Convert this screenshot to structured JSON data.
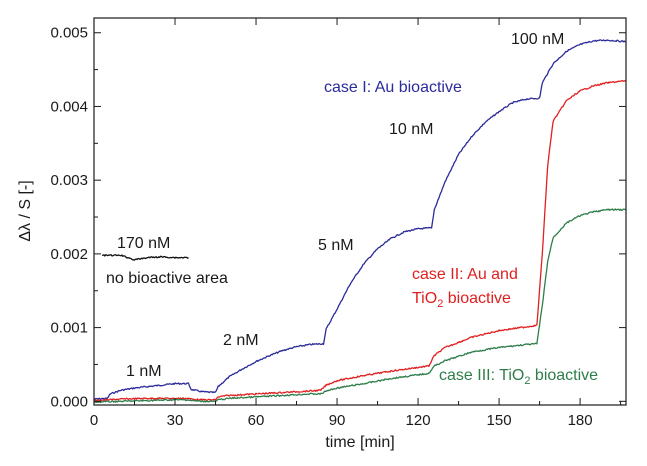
{
  "chart_data": {
    "type": "line",
    "xlabel": "time [min]",
    "ylabel": "Δλ / S [-]",
    "xlim": [
      0,
      197
    ],
    "ylim": [
      -5e-05,
      0.0052
    ],
    "xticks": [
      "0",
      "30",
      "60",
      "90",
      "120",
      "150",
      "180"
    ],
    "yticks": [
      "0.000",
      "0.001",
      "0.002",
      "0.003",
      "0.004",
      "0.005"
    ],
    "grid": false,
    "colors": {
      "case_I": "#2b2b9a",
      "case_II": "#e02020",
      "case_III": "#2e7d4a",
      "no_bioactive": "#111111"
    },
    "series": [
      {
        "key": "case_I",
        "x": [
          0,
          5,
          6,
          10,
          15,
          20,
          25,
          30,
          35,
          36,
          40,
          44,
          45,
          46,
          50,
          55,
          60,
          65,
          70,
          75,
          80,
          84,
          85,
          86,
          90,
          95,
          100,
          105,
          110,
          115,
          120,
          124,
          125,
          126,
          130,
          135,
          140,
          145,
          150,
          155,
          160,
          164,
          165,
          166,
          170,
          175,
          180,
          185,
          190,
          197
        ],
        "y": [
          3e-05,
          4e-05,
          0.0001,
          0.00015,
          0.00018,
          0.0002,
          0.00022,
          0.00024,
          0.00024,
          0.00016,
          0.00013,
          0.00012,
          0.00012,
          0.0002,
          0.00033,
          0.00044,
          0.00054,
          0.00062,
          0.00069,
          0.00074,
          0.00077,
          0.00078,
          0.00078,
          0.00098,
          0.00125,
          0.0016,
          0.00187,
          0.00207,
          0.00221,
          0.0023,
          0.00234,
          0.00235,
          0.00235,
          0.0026,
          0.00298,
          0.00335,
          0.0036,
          0.00379,
          0.00393,
          0.00405,
          0.0041,
          0.00411,
          0.00411,
          0.00432,
          0.00458,
          0.00475,
          0.00484,
          0.00489,
          0.0049,
          0.00488
        ]
      },
      {
        "key": "case_II",
        "x": [
          0,
          5,
          10,
          20,
          30,
          35,
          36,
          40,
          45,
          46,
          50,
          60,
          70,
          80,
          84,
          86,
          90,
          100,
          110,
          120,
          124,
          126,
          130,
          140,
          150,
          160,
          164,
          166,
          168,
          170,
          175,
          180,
          185,
          190,
          197
        ],
        "y": [
          1e-05,
          2e-05,
          3e-05,
          4e-05,
          4e-05,
          4e-05,
          3e-05,
          2e-05,
          2e-05,
          6e-05,
          8e-05,
          0.0001,
          0.00012,
          0.00014,
          0.00015,
          0.00022,
          0.00028,
          0.00035,
          0.00041,
          0.00046,
          0.00048,
          0.00062,
          0.00073,
          0.00087,
          0.00096,
          0.00101,
          0.00103,
          0.002,
          0.0032,
          0.0038,
          0.00408,
          0.00421,
          0.00428,
          0.00432,
          0.00435
        ]
      },
      {
        "key": "case_III",
        "x": [
          0,
          10,
          20,
          30,
          35,
          36,
          40,
          45,
          46,
          50,
          60,
          70,
          80,
          84,
          86,
          90,
          100,
          110,
          120,
          124,
          126,
          130,
          140,
          150,
          160,
          164,
          166,
          168,
          170,
          175,
          180,
          185,
          190,
          197
        ],
        "y": [
          -1e-05,
          0.0,
          1e-05,
          2e-05,
          2e-05,
          1e-05,
          0.0,
          0.0,
          2e-05,
          4e-05,
          6e-05,
          8e-05,
          0.0001,
          0.0001,
          0.00014,
          0.00018,
          0.00024,
          0.00031,
          0.00036,
          0.00038,
          0.00048,
          0.00055,
          0.00067,
          0.00073,
          0.00077,
          0.00078,
          0.0013,
          0.0019,
          0.00222,
          0.00242,
          0.00252,
          0.00257,
          0.0026,
          0.0026
        ]
      },
      {
        "key": "no_bioactive",
        "x": [
          3,
          10,
          15,
          20,
          25,
          30,
          35
        ],
        "y": [
          0.00198,
          0.00198,
          0.00192,
          0.00195,
          0.00196,
          0.00195,
          0.00195
        ]
      }
    ],
    "annotations": {
      "case1_label": "case I: Au bioactive",
      "case2_label_line1": "case II: Au and",
      "case2_label_line2_prefix": "TiO",
      "case2_label_line2_sub": "2",
      "case2_label_line2_suffix": " bioactive",
      "case3_label_prefix": "case III: TiO",
      "case3_label_sub": "2",
      "case3_label_suffix": " bioactive",
      "conc_1nM": "1 nM",
      "conc_2nM": "2 nM",
      "conc_5nM": "5 nM",
      "conc_10nM": "10 nM",
      "conc_100nM": "100 nM",
      "conc_170nM": "170 nM",
      "no_bioactive_label": "no bioactive area"
    }
  }
}
